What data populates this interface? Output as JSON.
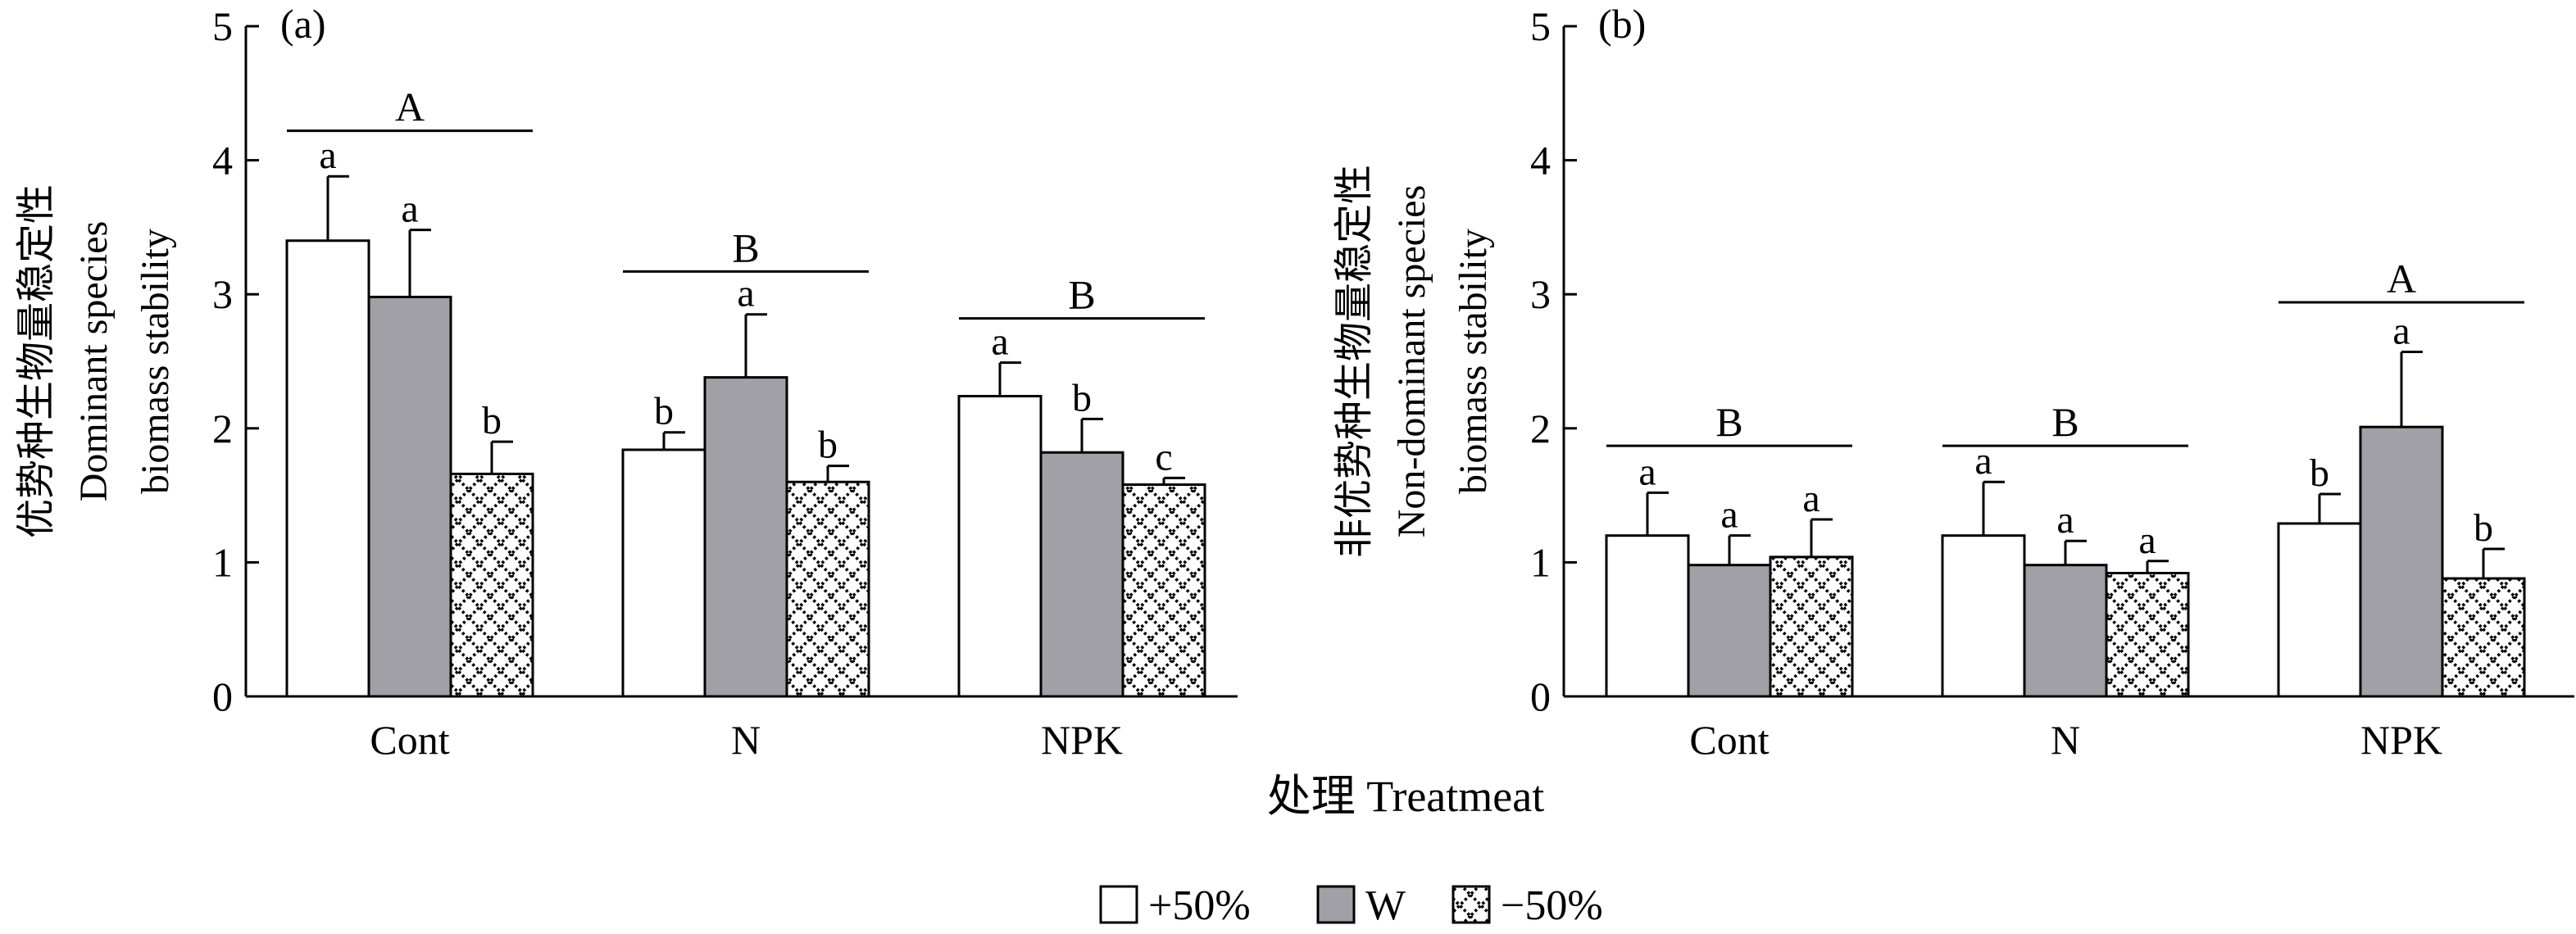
{
  "chart_data": [
    {
      "type": "bar",
      "panel_label": "(a)",
      "ylabel_zh": "优势种生物量稳定性",
      "ylabel_en": [
        "Dominant species",
        "biomass stability"
      ],
      "ylim": [
        0,
        5
      ],
      "yticks": [
        "0",
        "1",
        "2",
        "3",
        "4",
        "5"
      ],
      "categories": [
        "Cont",
        "N",
        "NPK"
      ],
      "series": [
        {
          "name": "+50%",
          "values": [
            3.4,
            1.84,
            2.24
          ],
          "errors": [
            0.48,
            0.13,
            0.25
          ],
          "letters": [
            "a",
            "b",
            "a"
          ]
        },
        {
          "name": "W",
          "values": [
            2.98,
            2.38,
            1.82
          ],
          "errors": [
            0.5,
            0.47,
            0.25
          ],
          "letters": [
            "a",
            "a",
            "b"
          ]
        },
        {
          "name": "−50%",
          "values": [
            1.66,
            1.6,
            1.58
          ],
          "errors": [
            0.24,
            0.12,
            0.05
          ],
          "letters": [
            "b",
            "b",
            "c"
          ]
        }
      ],
      "group_letters": [
        "A",
        "B",
        "B"
      ],
      "group_line_y": [
        4.22,
        3.17,
        2.82
      ]
    },
    {
      "type": "bar",
      "panel_label": "(b)",
      "ylabel_zh": "非优势种生物量稳定性",
      "ylabel_en": [
        "Non-dominant species",
        "biomass stability"
      ],
      "ylim": [
        0,
        5
      ],
      "yticks": [
        "0",
        "1",
        "2",
        "3",
        "4",
        "5"
      ],
      "categories": [
        "Cont",
        "N",
        "NPK"
      ],
      "series": [
        {
          "name": "+50%",
          "values": [
            1.2,
            1.2,
            1.29
          ],
          "errors": [
            0.32,
            0.4,
            0.22
          ],
          "letters": [
            "a",
            "a",
            "b"
          ]
        },
        {
          "name": "W",
          "values": [
            0.98,
            0.98,
            2.01
          ],
          "errors": [
            0.22,
            0.18,
            0.56
          ],
          "letters": [
            "a",
            "a",
            "a"
          ]
        },
        {
          "name": "−50%",
          "values": [
            1.04,
            0.92,
            0.88
          ],
          "errors": [
            0.28,
            0.09,
            0.22
          ],
          "letters": [
            "a",
            "a",
            "b"
          ]
        }
      ],
      "group_letters": [
        "B",
        "B",
        "A"
      ],
      "group_line_y": [
        1.87,
        1.87,
        2.94
      ]
    }
  ],
  "xlabel": "处理 Treatmeat",
  "legend": {
    "placement": "bottom-center",
    "items": [
      {
        "label": "+50%",
        "fill": "#ffffff"
      },
      {
        "label": "W",
        "fill": "#a0a0a6"
      },
      {
        "label": "−50%",
        "fill": "pattern"
      }
    ]
  },
  "colors": {
    "w_bar": "#a0a0a6",
    "stroke": "#000000",
    "background": "#ffffff"
  }
}
